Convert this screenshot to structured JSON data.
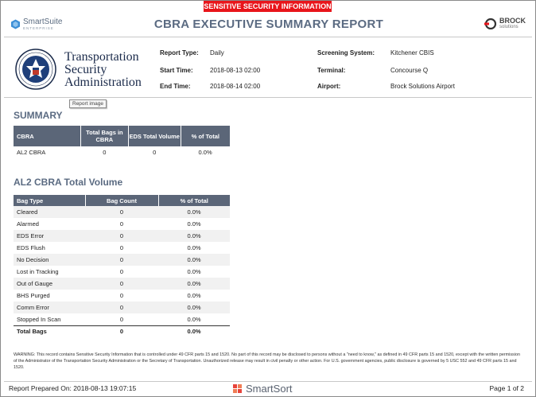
{
  "banner": "SENSITIVE SECURITY INFORMATION",
  "header": {
    "left_logo": {
      "name": "SmartSuite",
      "sub": "ENTERPRISE"
    },
    "title": "CBRA EXECUTIVE SUMMARY REPORT",
    "right_logo": {
      "name": "BROCK",
      "sub": "solutions"
    }
  },
  "agency": {
    "line1": "Transportation",
    "line2": "Security",
    "line3": "Administration"
  },
  "meta": {
    "report_type_label": "Report Type:",
    "report_type": "Daily",
    "start_time_label": "Start Time:",
    "start_time": "2018-08-13 02:00",
    "end_time_label": "End Time:",
    "end_time": "2018-08-14 02:00",
    "screening_system_label": "Screening System:",
    "screening_system": "Kitchener CBIS",
    "terminal_label": "Terminal:",
    "terminal": "Concourse Q",
    "airport_label": "Airport:",
    "airport": "Brock Solutions Airport"
  },
  "tooltip": "Report image",
  "summary": {
    "title": "SUMMARY",
    "headers": [
      "CBRA",
      "Total Bags in CBRA",
      "EDS Total Volume",
      "% of Total"
    ],
    "rows": [
      [
        "AL2 CBRA",
        "0",
        "0",
        "0.0%"
      ]
    ]
  },
  "volume": {
    "title": "AL2 CBRA Total Volume",
    "headers": [
      "Bag Type",
      "Bag Count",
      "% of Total"
    ],
    "rows": [
      [
        "Cleared",
        "0",
        "0.0%"
      ],
      [
        "Alarmed",
        "0",
        "0.0%"
      ],
      [
        "EDS Error",
        "0",
        "0.0%"
      ],
      [
        "EDS Flush",
        "0",
        "0.0%"
      ],
      [
        "No Decision",
        "0",
        "0.0%"
      ],
      [
        "Lost in Tracking",
        "0",
        "0.0%"
      ],
      [
        "Out of Gauge",
        "0",
        "0.0%"
      ],
      [
        "BHS Purged",
        "0",
        "0.0%"
      ],
      [
        "Comm Error",
        "0",
        "0.0%"
      ],
      [
        "Stopped In Scan",
        "0",
        "0.0%"
      ]
    ],
    "total": [
      "Total Bags",
      "0",
      "0.0%"
    ]
  },
  "warning": "WARNING: This record contains Sensitive Security Information that is controlled under 49 CFR parts 15 and 1520. No part of this record may be disclosed to persons without a \"need to know,\" as defined in 49 CFR parts 15 and 1520, except with the written permission of the Administrator of the Transportation Security Administration or the Secretary of Transportation. Unauthorized release may result in civil penalty or other action. For U.S. government agencies, public disclosure is governed by 5 USC 552 and 49 CFR parts 15 and 1520.",
  "footer": {
    "prepared": "Report Prepared On: 2018-08-13 19:07:15",
    "brand": "SmartSort",
    "page": "Page 1 of 2"
  },
  "colors": {
    "banner": "#e8151b",
    "table_header": "#5b6678",
    "title": "#5b6b82"
  }
}
